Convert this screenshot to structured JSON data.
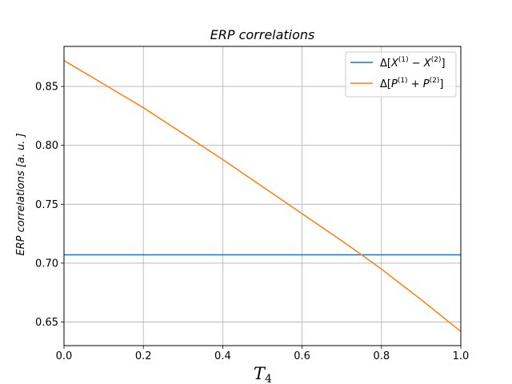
{
  "chart_data": {
    "type": "line",
    "title": "ERP correlations",
    "xlabel": "T",
    "xlabel_sub": "4",
    "ylabel": "ERP correlations [a. u. ]",
    "xlim": [
      0.0,
      1.0
    ],
    "ylim": [
      0.63,
      0.884
    ],
    "xticks": [
      0.0,
      0.2,
      0.4,
      0.6,
      0.8,
      1.0
    ],
    "xtick_labels": [
      "0.0",
      "0.2",
      "0.4",
      "0.6",
      "0.8",
      "1.0"
    ],
    "yticks": [
      0.65,
      0.7,
      0.75,
      0.8,
      0.85
    ],
    "ytick_labels": [
      "0.65",
      "0.70",
      "0.75",
      "0.80",
      "0.85"
    ],
    "grid": true,
    "legend_position": "top-right",
    "series": [
      {
        "name": "Δ[X(1) − X(2)]",
        "legend": {
          "pre": "Δ[",
          "v1": "X",
          "s1": "(1)",
          "op": " − ",
          "v2": "X",
          "s2": "(2)",
          "post": "]"
        },
        "color": "#1f77b4",
        "x": [
          0.0,
          1.0
        ],
        "y": [
          0.7071,
          0.7071
        ]
      },
      {
        "name": "Δ[P(1) + P(2)]",
        "legend": {
          "pre": "Δ[",
          "v1": "P",
          "s1": "(1)",
          "op": " + ",
          "v2": "P",
          "s2": "(2)",
          "post": "]"
        },
        "color": "#ff7f0e",
        "x": [
          0.0,
          0.1,
          0.2,
          0.3,
          0.4,
          0.5,
          0.6,
          0.7,
          0.75,
          0.8,
          0.9,
          1.0
        ],
        "y": [
          0.872,
          0.852,
          0.832,
          0.81,
          0.788,
          0.765,
          0.742,
          0.719,
          0.7071,
          0.695,
          0.669,
          0.642
        ]
      }
    ]
  }
}
